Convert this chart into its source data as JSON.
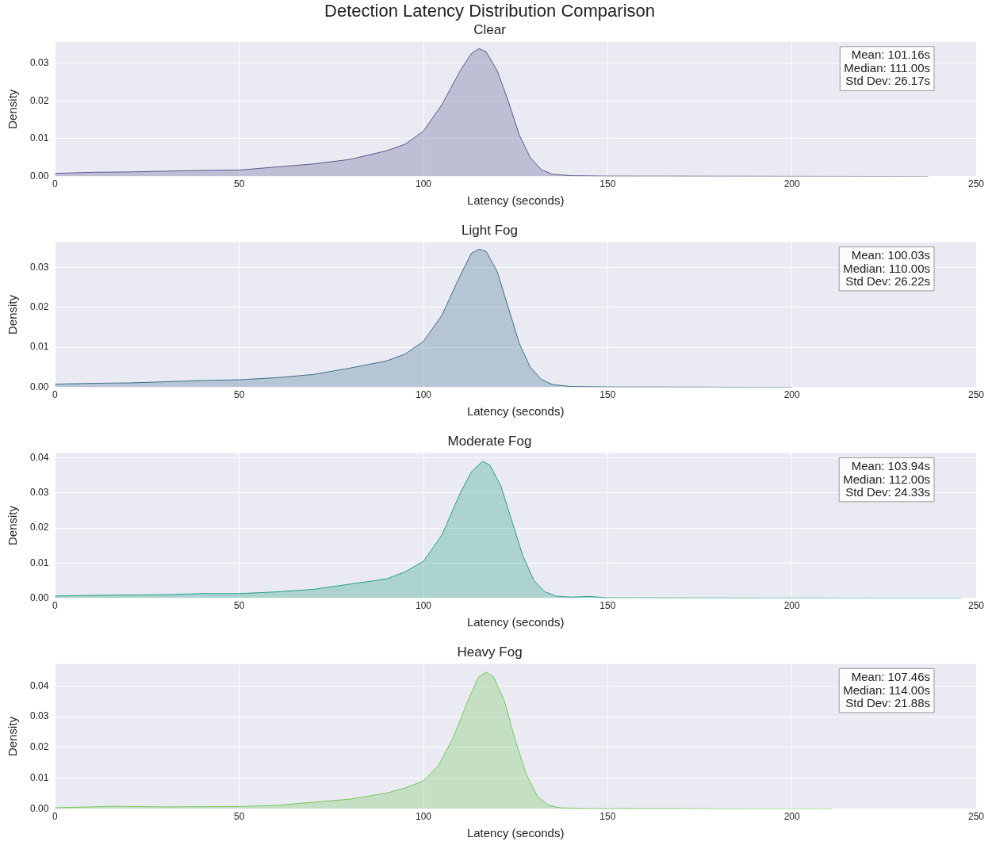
{
  "chart_data": [
    {
      "type": "area",
      "title": "Detection Latency Distribution Comparison",
      "subtitle": "Clear",
      "xlabel": "Latency (seconds)",
      "ylabel": "Density",
      "xlim": [
        0,
        250
      ],
      "xticks": [
        0,
        50,
        100,
        150,
        200,
        250
      ],
      "ylim": [
        0,
        0.0356
      ],
      "yticks": [
        {
          "value": 0,
          "label": "0.00"
        },
        {
          "value": 0.01,
          "label": "0.01"
        },
        {
          "value": 0.02,
          "label": "0.02"
        },
        {
          "value": 0.03,
          "label": "0.03"
        }
      ],
      "grid": true,
      "annotations": [
        "Mean: 101.16s",
        "Median: 111.00s",
        "Std Dev: 26.17s"
      ],
      "series": [
        {
          "color": "#5a5a92",
          "x": [
            0,
            10,
            20,
            30,
            40,
            50,
            60,
            70,
            80,
            90,
            95,
            100,
            105,
            110,
            113,
            115,
            117,
            120,
            123,
            126,
            129,
            132,
            135,
            140,
            150,
            200,
            237
          ],
          "values": [
            0.0008,
            0.0011,
            0.0012,
            0.0014,
            0.0016,
            0.0017,
            0.0025,
            0.0033,
            0.0045,
            0.0068,
            0.0085,
            0.012,
            0.019,
            0.028,
            0.0325,
            0.0338,
            0.033,
            0.028,
            0.02,
            0.011,
            0.005,
            0.0018,
            0.0006,
            0.0002,
            0.0001,
            5e-05,
            0
          ]
        }
      ]
    },
    {
      "type": "area",
      "title": "Light Fog",
      "xlabel": "Latency (seconds)",
      "ylabel": "Density",
      "xlim": [
        0,
        250
      ],
      "xticks": [
        0,
        50,
        100,
        150,
        200,
        250
      ],
      "ylim": [
        0,
        0.0363
      ],
      "yticks": [
        {
          "value": 0,
          "label": "0.00"
        },
        {
          "value": 0.01,
          "label": "0.01"
        },
        {
          "value": 0.02,
          "label": "0.02"
        },
        {
          "value": 0.03,
          "label": "0.03"
        }
      ],
      "grid": true,
      "annotations": [
        "Mean: 100.03s",
        "Median: 110.00s",
        "Std Dev: 26.22s"
      ],
      "series": [
        {
          "color": "#3f6f8c",
          "x": [
            0,
            10,
            20,
            30,
            40,
            50,
            60,
            70,
            80,
            90,
            95,
            100,
            105,
            110,
            113,
            115,
            117,
            120,
            123,
            126,
            129,
            132,
            135,
            140,
            150,
            200
          ],
          "values": [
            0.0008,
            0.001,
            0.0011,
            0.0014,
            0.0017,
            0.0019,
            0.0024,
            0.0032,
            0.0048,
            0.0066,
            0.0083,
            0.0115,
            0.018,
            0.028,
            0.0335,
            0.0345,
            0.034,
            0.029,
            0.02,
            0.011,
            0.005,
            0.002,
            0.0007,
            0.0002,
            0.0001,
            0
          ]
        }
      ]
    },
    {
      "type": "area",
      "title": "Moderate Fog",
      "xlabel": "Latency (seconds)",
      "ylabel": "Density",
      "xlim": [
        0,
        250
      ],
      "xticks": [
        0,
        50,
        100,
        150,
        200,
        250
      ],
      "ylim": [
        0,
        0.0414
      ],
      "yticks": [
        {
          "value": 0,
          "label": "0.00"
        },
        {
          "value": 0.01,
          "label": "0.01"
        },
        {
          "value": 0.02,
          "label": "0.02"
        },
        {
          "value": 0.03,
          "label": "0.03"
        },
        {
          "value": 0.04,
          "label": "0.04"
        }
      ],
      "grid": true,
      "annotations": [
        "Mean: 103.94s",
        "Median: 112.00s",
        "Std Dev: 24.33s"
      ],
      "series": [
        {
          "color": "#21a085",
          "x": [
            0,
            10,
            20,
            30,
            40,
            50,
            60,
            70,
            80,
            90,
            95,
            100,
            105,
            110,
            113,
            116,
            118,
            121,
            124,
            127,
            130,
            133,
            136,
            140,
            145,
            150,
            246
          ],
          "values": [
            0.0006,
            0.0008,
            0.0009,
            0.001,
            0.0013,
            0.0013,
            0.0018,
            0.0025,
            0.004,
            0.0055,
            0.0075,
            0.0105,
            0.018,
            0.03,
            0.036,
            0.039,
            0.038,
            0.032,
            0.022,
            0.012,
            0.005,
            0.0018,
            0.0006,
            0.0003,
            0.0005,
            0.0001,
            0
          ]
        }
      ]
    },
    {
      "type": "area",
      "title": "Heavy Fog",
      "xlabel": "Latency (seconds)",
      "ylabel": "Density",
      "xlim": [
        0,
        250
      ],
      "xticks": [
        0,
        50,
        100,
        150,
        200,
        250
      ],
      "ylim": [
        0,
        0.0472
      ],
      "yticks": [
        {
          "value": 0,
          "label": "0.00"
        },
        {
          "value": 0.01,
          "label": "0.01"
        },
        {
          "value": 0.02,
          "label": "0.02"
        },
        {
          "value": 0.03,
          "label": "0.03"
        },
        {
          "value": 0.04,
          "label": "0.04"
        }
      ],
      "grid": true,
      "annotations": [
        "Mean: 107.46s",
        "Median: 114.00s",
        "Std Dev: 21.88s"
      ],
      "series": [
        {
          "color": "#72c85a",
          "x": [
            0,
            10,
            15,
            30,
            45,
            50,
            60,
            70,
            80,
            90,
            95,
            100,
            104,
            108,
            112,
            115,
            117,
            119,
            122,
            125,
            128,
            131,
            134,
            137,
            145,
            211
          ],
          "values": [
            0.0004,
            0.0007,
            0.0009,
            0.0007,
            0.0008,
            0.0008,
            0.0012,
            0.0022,
            0.0032,
            0.0052,
            0.0068,
            0.0092,
            0.014,
            0.023,
            0.035,
            0.043,
            0.0445,
            0.043,
            0.035,
            0.022,
            0.011,
            0.004,
            0.0012,
            0.0004,
            0.0002,
            0
          ]
        }
      ]
    }
  ]
}
